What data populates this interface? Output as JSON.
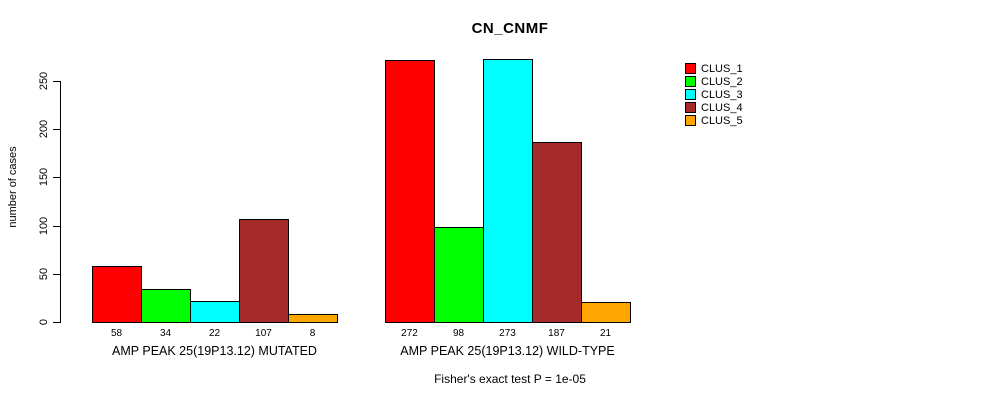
{
  "chart_data": {
    "type": "bar",
    "title": "CN_CNMF",
    "ylabel": "number of cases",
    "xlabel": "",
    "yticks": [
      0,
      50,
      100,
      150,
      200,
      250
    ],
    "ylim": [
      0,
      280
    ],
    "grid": false,
    "legend_position": "right",
    "series": [
      {
        "name": "CLUS_1",
        "color": "#FF0000"
      },
      {
        "name": "CLUS_2",
        "color": "#00FF00"
      },
      {
        "name": "CLUS_3",
        "color": "#00FFFF"
      },
      {
        "name": "CLUS_4",
        "color": "#A52A2A"
      },
      {
        "name": "CLUS_5",
        "color": "#FFA500"
      }
    ],
    "groups": [
      {
        "label": "AMP PEAK 25(19P13.12) MUTATED",
        "values": [
          58,
          34,
          22,
          107,
          8
        ]
      },
      {
        "label": "AMP PEAK 25(19P13.12) WILD-TYPE",
        "values": [
          272,
          98,
          273,
          187,
          21
        ]
      }
    ],
    "footnote": "Fisher's exact test P = 1e-05"
  }
}
